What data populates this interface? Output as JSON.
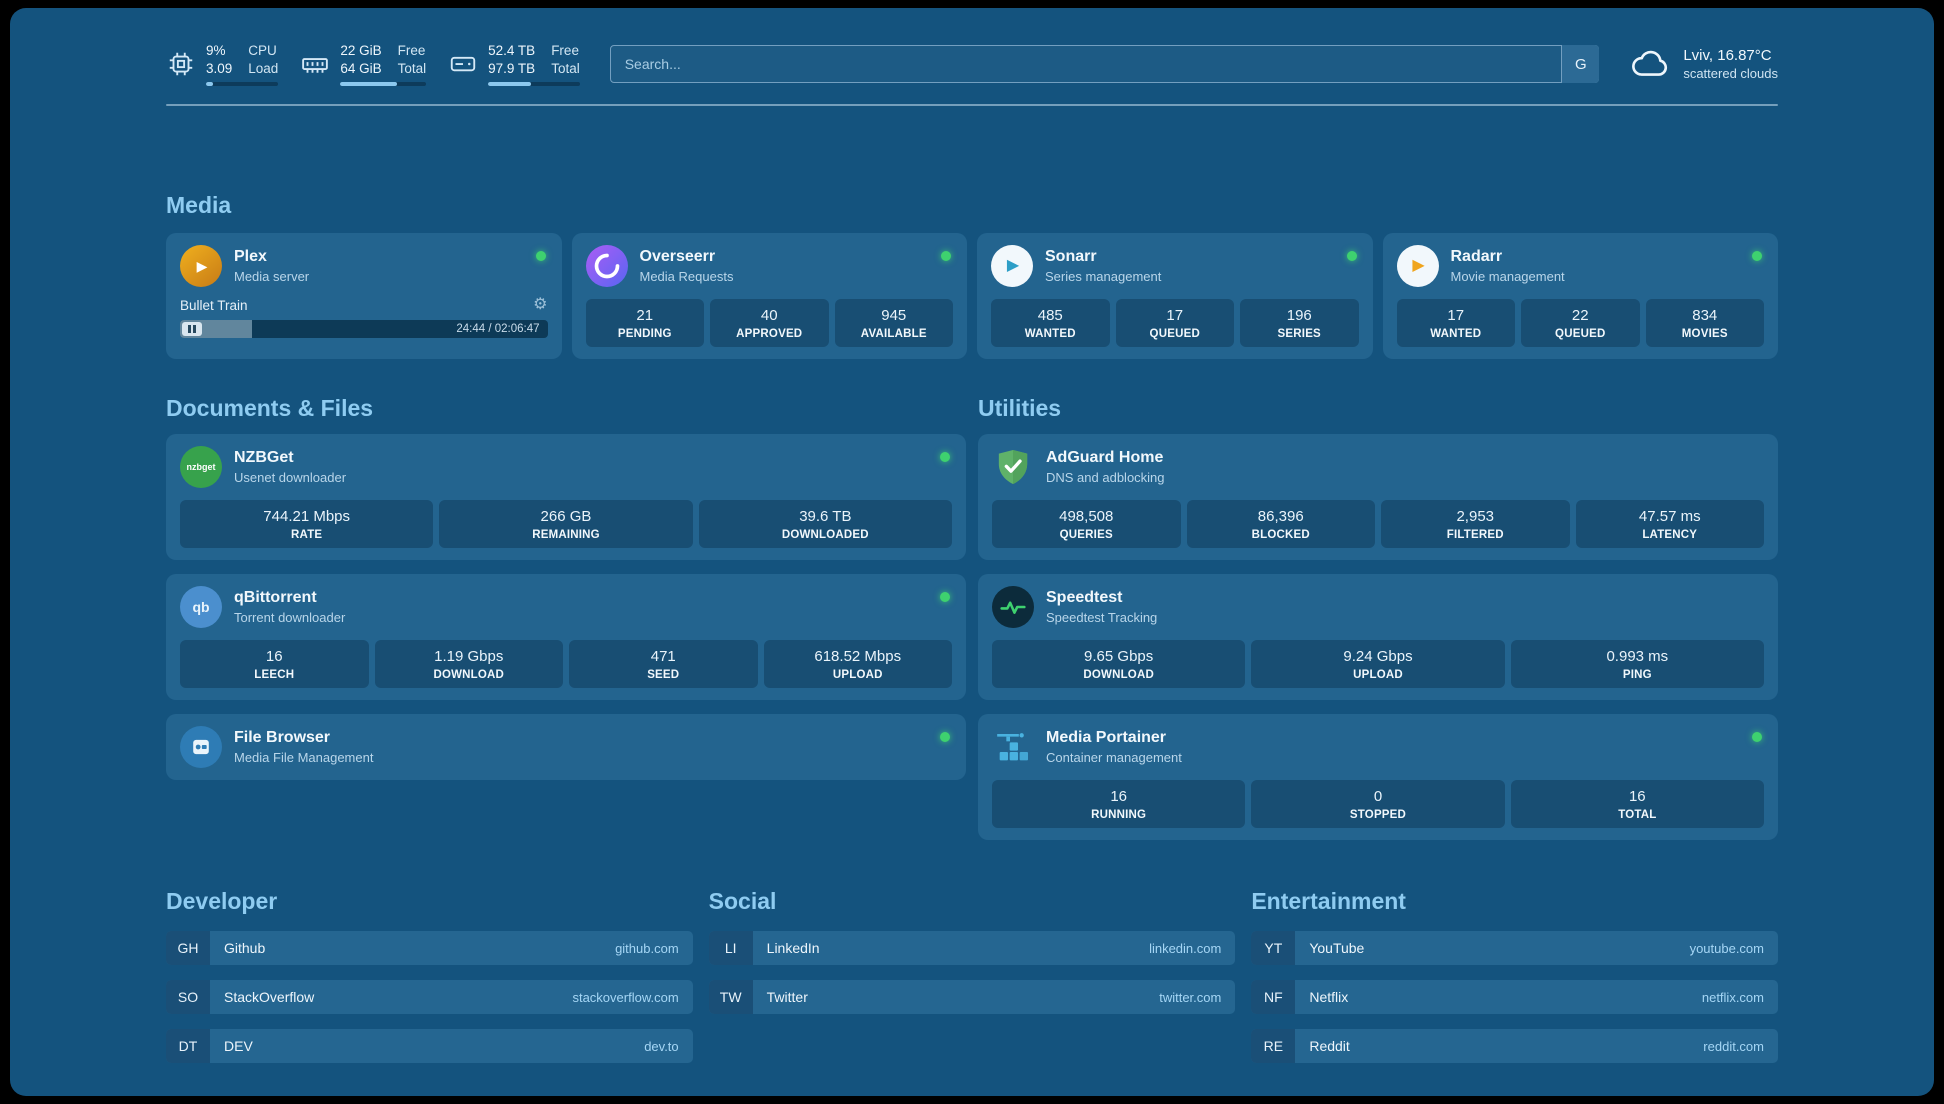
{
  "icons": {
    "play": "▶",
    "gear": "⚙",
    "qb": "qb",
    "nzbget": "nzbget"
  },
  "header": {
    "system": [
      {
        "col1_top": "9%",
        "col1_bottom": "3.09",
        "col2_top": "CPU",
        "col2_bottom": "Load",
        "bar_percent": 9
      },
      {
        "col1_top": "22 GiB",
        "col1_bottom": "64 GiB",
        "col2_top": "Free",
        "col2_bottom": "Total",
        "bar_percent": 66
      },
      {
        "col1_top": "52.4 TB",
        "col1_bottom": "97.9 TB",
        "col2_top": "Free",
        "col2_bottom": "Total",
        "bar_percent": 47
      }
    ],
    "search": {
      "placeholder": "Search...",
      "engine_label": "G"
    },
    "weather": {
      "location": "Lviv, 16.87°C",
      "condition": "scattered clouds"
    }
  },
  "sections": {
    "media": {
      "title": "Media",
      "apps": [
        {
          "name": "Plex",
          "subtitle": "Media server",
          "status": "online",
          "player": {
            "title": "Bullet Train",
            "time": "24:44 / 02:06:47",
            "progress_percent": 19.5
          }
        },
        {
          "name": "Overseerr",
          "subtitle": "Media Requests",
          "status": "online",
          "stats": [
            {
              "value": "21",
              "label": "PENDING"
            },
            {
              "value": "40",
              "label": "APPROVED"
            },
            {
              "value": "945",
              "label": "AVAILABLE"
            }
          ]
        },
        {
          "name": "Sonarr",
          "subtitle": "Series management",
          "status": "online",
          "stats": [
            {
              "value": "485",
              "label": "WANTED"
            },
            {
              "value": "17",
              "label": "QUEUED"
            },
            {
              "value": "196",
              "label": "SERIES"
            }
          ]
        },
        {
          "name": "Radarr",
          "subtitle": "Movie management",
          "status": "online",
          "stats": [
            {
              "value": "17",
              "label": "WANTED"
            },
            {
              "value": "22",
              "label": "QUEUED"
            },
            {
              "value": "834",
              "label": "MOVIES"
            }
          ]
        }
      ]
    },
    "documents": {
      "title": "Documents & Files",
      "apps": [
        {
          "name": "NZBGet",
          "subtitle": "Usenet downloader",
          "status": "online",
          "stats": [
            {
              "value": "744.21 Mbps",
              "label": "RATE"
            },
            {
              "value": "266 GB",
              "label": "REMAINING"
            },
            {
              "value": "39.6 TB",
              "label": "DOWNLOADED"
            }
          ]
        },
        {
          "name": "qBittorrent",
          "subtitle": "Torrent downloader",
          "status": "online",
          "stats": [
            {
              "value": "16",
              "label": "LEECH"
            },
            {
              "value": "1.19 Gbps",
              "label": "DOWNLOAD"
            },
            {
              "value": "471",
              "label": "SEED"
            },
            {
              "value": "618.52 Mbps",
              "label": "UPLOAD"
            }
          ]
        },
        {
          "name": "File Browser",
          "subtitle": "Media File Management",
          "status": "online"
        }
      ]
    },
    "utilities": {
      "title": "Utilities",
      "apps": [
        {
          "name": "AdGuard Home",
          "subtitle": "DNS and adblocking",
          "stats": [
            {
              "value": "498,508",
              "label": "QUERIES"
            },
            {
              "value": "86,396",
              "label": "BLOCKED"
            },
            {
              "value": "2,953",
              "label": "FILTERED"
            },
            {
              "value": "47.57 ms",
              "label": "LATENCY"
            }
          ]
        },
        {
          "name": "Speedtest",
          "subtitle": "Speedtest Tracking",
          "stats": [
            {
              "value": "9.65 Gbps",
              "label": "DOWNLOAD"
            },
            {
              "value": "9.24 Gbps",
              "label": "UPLOAD"
            },
            {
              "value": "0.993 ms",
              "label": "PING"
            }
          ]
        },
        {
          "name": "Media Portainer",
          "subtitle": "Container management",
          "status": "online",
          "stats": [
            {
              "value": "16",
              "label": "RUNNING"
            },
            {
              "value": "0",
              "label": "STOPPED"
            },
            {
              "value": "16",
              "label": "TOTAL"
            }
          ]
        }
      ]
    },
    "bookmarks": [
      {
        "title": "Developer",
        "items": [
          {
            "abbr": "GH",
            "name": "Github",
            "url": "github.com"
          },
          {
            "abbr": "SO",
            "name": "StackOverflow",
            "url": "stackoverflow.com"
          },
          {
            "abbr": "DT",
            "name": "DEV",
            "url": "dev.to"
          }
        ]
      },
      {
        "title": "Social",
        "items": [
          {
            "abbr": "LI",
            "name": "LinkedIn",
            "url": "linkedin.com"
          },
          {
            "abbr": "TW",
            "name": "Twitter",
            "url": "twitter.com"
          }
        ]
      },
      {
        "title": "Entertainment",
        "items": [
          {
            "abbr": "YT",
            "name": "YouTube",
            "url": "youtube.com"
          },
          {
            "abbr": "NF",
            "name": "Netflix",
            "url": "netflix.com"
          },
          {
            "abbr": "RE",
            "name": "Reddit",
            "url": "reddit.com"
          }
        ]
      }
    ]
  },
  "colors": {
    "background": "#14537e",
    "card": "#23648f",
    "accent_title": "#8fccf1",
    "status_online": "#3ed16f",
    "bar_fill": "#8cc8ee",
    "url_text": "#a5d6f5"
  }
}
